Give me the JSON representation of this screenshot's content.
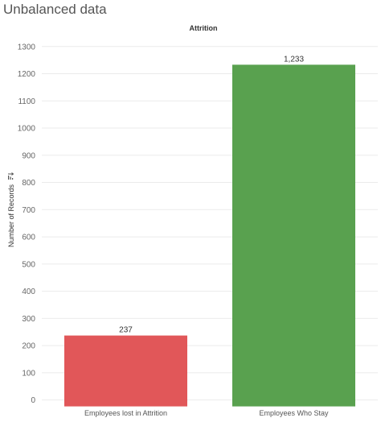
{
  "page": {
    "title": "Unbalanced data"
  },
  "chart_data": {
    "type": "bar",
    "column_header": "Attrition",
    "ylabel": "Number of Records",
    "sort_icon": "sort-descending-icon",
    "categories": [
      "Employees lost in Attrition",
      "Employees Who Stay"
    ],
    "values": [
      237,
      1233
    ],
    "value_labels": [
      "237",
      "1,233"
    ],
    "colors": [
      "#e15759",
      "#59a14f"
    ],
    "ylim": [
      0,
      1300
    ],
    "yticks": [
      0,
      100,
      200,
      300,
      400,
      500,
      600,
      700,
      800,
      900,
      1000,
      1100,
      1200,
      1300
    ],
    "grid": true,
    "gridline_color": "#ebebeb"
  }
}
